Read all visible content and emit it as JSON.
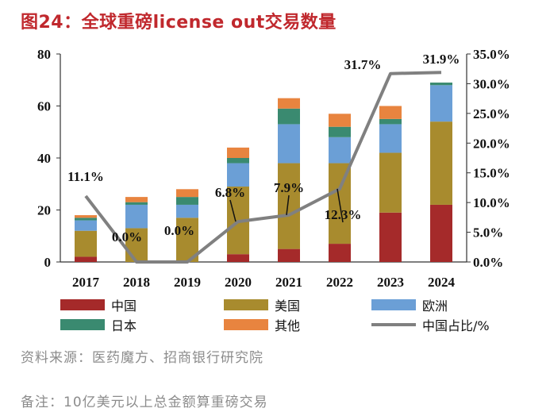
{
  "title": "图24：全球重磅license out交易数量",
  "chart_data": {
    "type": "bar",
    "categories": [
      "2017",
      "2018",
      "2019",
      "2020",
      "2021",
      "2022",
      "2023",
      "2024"
    ],
    "stacked": true,
    "series": [
      {
        "name": "中国",
        "color": "#a52a2a",
        "values": [
          2,
          0,
          0,
          3,
          5,
          7,
          19,
          22
        ]
      },
      {
        "name": "美国",
        "color": "#a88b2e",
        "values": [
          10,
          13,
          17,
          26,
          33,
          31,
          23,
          32
        ]
      },
      {
        "name": "欧洲",
        "color": "#6b9fd6",
        "values": [
          4,
          9,
          5,
          9,
          15,
          10,
          11,
          14
        ]
      },
      {
        "name": "日本",
        "color": "#3a8a70",
        "values": [
          1,
          1,
          3,
          2,
          6,
          4,
          2,
          1
        ]
      },
      {
        "name": "其他",
        "color": "#e8843f",
        "values": [
          1,
          2,
          3,
          4,
          4,
          5,
          5,
          0
        ]
      }
    ],
    "line_series": {
      "name": "中国占比/%",
      "color": "#808080",
      "axis": "right",
      "values": [
        11.1,
        0.0,
        0.0,
        6.8,
        7.9,
        12.3,
        31.7,
        31.9
      ],
      "labels": [
        "11.1%",
        "0.0%",
        "0.0%",
        "6.8%",
        "7.9%",
        "12.3%",
        "31.7%",
        "31.9%"
      ]
    },
    "y_left": {
      "min": 0,
      "max": 80,
      "ticks": [
        "0",
        "20",
        "40",
        "60",
        "80"
      ]
    },
    "y_right": {
      "min": 0,
      "max": 35,
      "ticks": [
        "0.0%",
        "5.0%",
        "10.0%",
        "15.0%",
        "20.0%",
        "25.0%",
        "30.0%",
        "35.0%"
      ]
    },
    "legend_position": "bottom"
  },
  "legend": {
    "items": [
      "中国",
      "美国",
      "欧洲",
      "日本",
      "其他",
      "中国占比/%"
    ]
  },
  "source": "资料来源：医药魔方、招商银行研究院",
  "note": "备注：10亿美元以上总金额算重磅交易"
}
